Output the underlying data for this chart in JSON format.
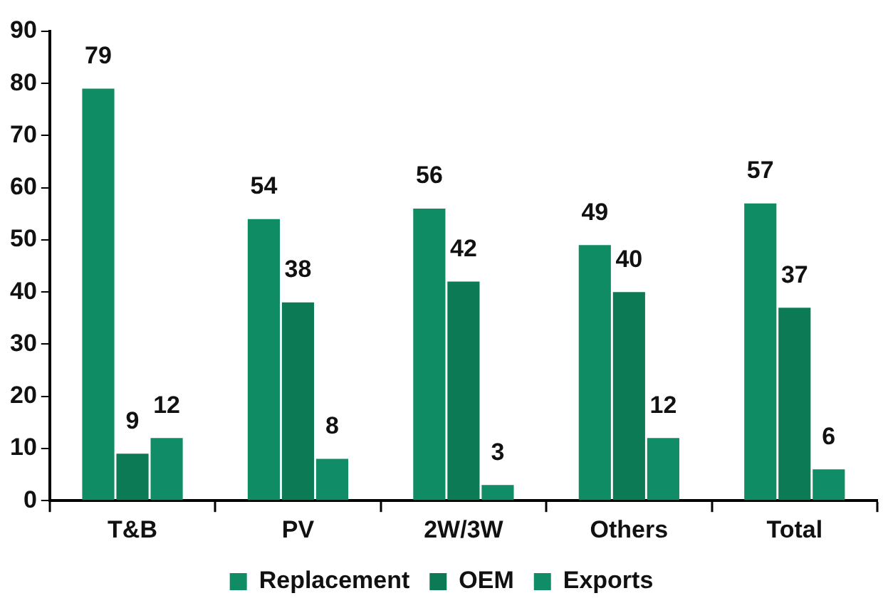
{
  "chart_data": {
    "type": "bar",
    "categories": [
      "T&B",
      "PV",
      "2W/3W",
      "Others",
      "Total"
    ],
    "series": [
      {
        "name": "Replacement",
        "color": "#0f8c63",
        "values": [
          79,
          54,
          56,
          49,
          57
        ]
      },
      {
        "name": "OEM",
        "color": "#0c7a55",
        "values": [
          9,
          38,
          42,
          40,
          37
        ]
      },
      {
        "name": "Exports",
        "color": "#108d66",
        "values": [
          12,
          8,
          3,
          12,
          6
        ]
      }
    ],
    "ylim": [
      0,
      90
    ],
    "yticks": [
      0,
      10,
      20,
      30,
      40,
      50,
      60,
      70,
      80,
      90
    ],
    "grid": false,
    "legend": "bottom",
    "data_labels": true
  }
}
